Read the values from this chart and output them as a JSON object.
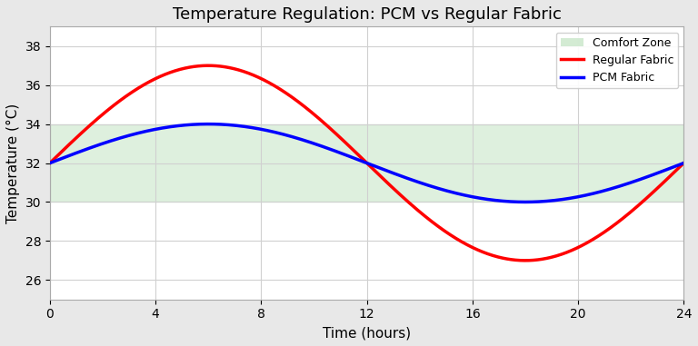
{
  "title": "Temperature Regulation: PCM vs Regular Fabric",
  "xlabel": "Time (hours)",
  "ylabel": "Temperature (°C)",
  "xlim": [
    0,
    24
  ],
  "ylim": [
    25,
    39
  ],
  "yticks": [
    26,
    28,
    30,
    32,
    34,
    36,
    38
  ],
  "xticks": [
    0,
    4,
    8,
    12,
    16,
    20,
    24
  ],
  "comfort_zone_low": 30,
  "comfort_zone_high": 34,
  "comfort_zone_color": "#c8e6c9",
  "comfort_zone_alpha": 0.6,
  "regular_fabric_color": "red",
  "pcm_fabric_color": "blue",
  "line_width": 2.5,
  "regular_amplitude": 5,
  "regular_mean": 32,
  "pcm_amplitude": 2,
  "pcm_mean": 32,
  "fig_bg": "#e8e8e8",
  "ax_bg": "#ffffff",
  "grid_color": "#d0d0d0",
  "legend_labels": [
    "Comfort Zone",
    "Regular Fabric",
    "PCM Fabric"
  ]
}
